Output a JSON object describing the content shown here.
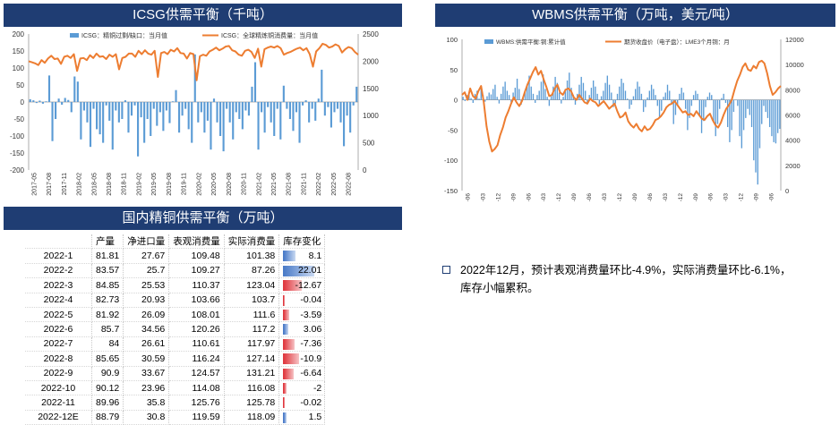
{
  "chart_data": [
    {
      "type": "bar+line",
      "title": "ICSG供需平衡（千吨）",
      "legend": [
        "ICSG：精铜过剩/缺口：当月值",
        "ICSG：全球精炼铜消费量：当月值"
      ],
      "left_axis": {
        "min": -200,
        "max": 200,
        "ticks": [
          200,
          150,
          100,
          50,
          0,
          -50,
          -100,
          -150,
          -200
        ]
      },
      "right_axis": {
        "min": 0,
        "max": 2500,
        "ticks": [
          2500,
          2000,
          1500,
          1000,
          500,
          0
        ]
      },
      "x_tick_labels": [
        "2017-05",
        "2017-08",
        "2017-11",
        "2018-02",
        "2018-05",
        "2018-08",
        "2018-11",
        "2019-02",
        "2019-05",
        "2019-08",
        "2019-11",
        "2020-02",
        "2020-05",
        "2020-08",
        "2020-11",
        "2021-02",
        "2021-05",
        "2021-08",
        "2021-11",
        "2022-02",
        "2022-05",
        "2022-08"
      ],
      "series": [
        {
          "name": "ICSG：精铜过剩/缺口：当月值",
          "kind": "bar",
          "values": [
            8,
            5,
            -3,
            4,
            -5,
            2,
            78,
            -115,
            -50,
            10,
            -8,
            12,
            6,
            -30,
            75,
            60,
            -110,
            -25,
            -60,
            -132,
            -20,
            -80,
            -95,
            -120,
            -10,
            -55,
            -140,
            -25,
            -60,
            -50,
            5,
            -90,
            -40,
            -10,
            -160,
            -45,
            -120,
            -50,
            -100,
            -20,
            -70,
            -30,
            -85,
            -25,
            -62,
            2,
            35,
            -90,
            -40,
            -20,
            -80,
            -120,
            140,
            -60,
            -30,
            -90,
            -55,
            -140,
            10,
            -60,
            -100,
            -145,
            -20,
            -60,
            -110,
            -30,
            -50,
            -80,
            -25,
            -40,
            45,
            117,
            -140,
            -30,
            -90,
            -15,
            -60,
            -100,
            -20,
            -110,
            48,
            -20,
            -50,
            -85,
            -30,
            -120,
            -10,
            5,
            -60,
            -20,
            -55,
            10,
            95,
            -40,
            -15,
            -75,
            -30,
            -20,
            -60,
            -130,
            -40,
            -90,
            -10,
            45
          ]
        },
        {
          "name": "ICSG：全球精炼铜消费量：当月值",
          "kind": "line",
          "values": [
            2000,
            1980,
            1960,
            1930,
            2020,
            1970,
            2050,
            2100,
            2040,
            2050,
            1950,
            2080,
            2100,
            2060,
            2130,
            1820,
            2050,
            2060,
            2020,
            2110,
            2060,
            2140,
            2080,
            2090,
            2040,
            2120,
            2080,
            2130,
            1850,
            2060,
            2080,
            2140,
            2140,
            2080,
            2190,
            2130,
            2200,
            2140,
            2120,
            2190,
            1710,
            2150,
            2170,
            2130,
            2210,
            2180,
            2240,
            2150,
            2140,
            2050,
            2150,
            2130,
            1650,
            2090,
            2120,
            2100,
            2180,
            2210,
            2250,
            2200,
            2230,
            2270,
            2280,
            2200,
            2180,
            2120,
            2100,
            2190,
            2210,
            2170,
            2060,
            2230,
            1900,
            2220,
            2250,
            2270,
            2250,
            2280,
            2240,
            2120,
            2150,
            2170,
            2200,
            2230,
            2250,
            2200,
            2240,
            2130,
            1900,
            2180,
            2240,
            2320,
            2300,
            2250,
            2270,
            2310,
            2280,
            2160,
            2220,
            2260,
            2240,
            2170,
            2120
          ]
        }
      ]
    },
    {
      "type": "bar+line",
      "title": "WBMS供需平衡（万吨，美元/吨）",
      "legend": [
        "WBMS:供需平衡:铜:累计值",
        "期货收盘价（电子盘）：LME3个月铜：月"
      ],
      "left_axis": {
        "min": -150,
        "max": 100,
        "ticks": [
          100,
          50,
          0,
          -50,
          -100,
          -150
        ]
      },
      "right_axis": {
        "min": 0,
        "max": 12000,
        "ticks": [
          12000,
          10000,
          8000,
          6000,
          4000,
          2000,
          0
        ]
      },
      "x_tick_labels": [
        "2007-06",
        "2008-03",
        "2008-12",
        "2009-09",
        "2010-06",
        "2011-03",
        "2011-12",
        "2012-09",
        "2013-06",
        "2014-03",
        "2014-12",
        "2015-09",
        "2016-06",
        "2017-03",
        "2017-12",
        "2018-09",
        "2019-06",
        "2020-03",
        "2020-12",
        "2021-09",
        "2022-06"
      ],
      "series": [
        {
          "name": "WBMS:供需平衡:铜:累计值",
          "kind": "bar",
          "values": [
            5,
            -2,
            8,
            12,
            3,
            -5,
            10,
            15,
            2,
            20,
            8,
            -3,
            6,
            12,
            9,
            18,
            25,
            5,
            -6,
            10,
            22,
            30,
            15,
            8,
            -4,
            12,
            20,
            35,
            18,
            -8,
            5,
            14,
            25,
            40,
            22,
            10,
            -5,
            8,
            15,
            30,
            42,
            18,
            5,
            -10,
            8,
            22,
            38,
            28,
            12,
            -6,
            5,
            18,
            32,
            45,
            20,
            8,
            -8,
            10,
            25,
            38,
            28,
            15,
            -5,
            8,
            20,
            32,
            22,
            10,
            -8,
            6,
            15,
            28,
            40,
            25,
            12,
            -12,
            -6,
            10,
            22,
            35,
            28,
            15,
            2,
            -15,
            -8,
            6,
            18,
            30,
            22,
            10,
            -20,
            -12,
            4,
            15,
            25,
            18,
            8,
            -10,
            -30,
            -18,
            5,
            12,
            25,
            15,
            -5,
            -40,
            -25,
            -8,
            10,
            20,
            12,
            -15,
            -50,
            -30,
            -10,
            8,
            15,
            10,
            -25,
            -55,
            -35,
            -12,
            5,
            12,
            8,
            -35,
            -60,
            -40,
            -15,
            3,
            10,
            -5,
            -45,
            -70,
            -50,
            -20,
            0,
            -10,
            -60,
            -80,
            -50,
            -30,
            -15,
            -25,
            -45,
            -100,
            -120,
            -140,
            -80,
            -40,
            -10,
            -20,
            -30,
            -45,
            -60,
            -70,
            -72,
            -55,
            -48
          ]
        },
        {
          "name": "期货收盘价（电子盘）：LME3个月铜：月",
          "kind": "line",
          "values": [
            7600,
            7800,
            7200,
            8100,
            7500,
            7300,
            7900,
            8300,
            7000,
            5100,
            3900,
            3100,
            3300,
            3600,
            4400,
            5000,
            5800,
            6300,
            6900,
            7400,
            7000,
            6700,
            7100,
            7800,
            8400,
            8900,
            9400,
            9800,
            9200,
            9500,
            8800,
            8200,
            7500,
            7600,
            8100,
            8400,
            7800,
            7600,
            8000,
            8100,
            7900,
            7400,
            7200,
            7600,
            7300,
            7000,
            6900,
            7300,
            7100,
            7000,
            6700,
            6900,
            7100,
            6800,
            6500,
            6700,
            6900,
            6300,
            5800,
            5900,
            6200,
            5500,
            5200,
            5000,
            5300,
            4900,
            4700,
            5100,
            4800,
            4900,
            5200,
            5600,
            5700,
            5900,
            6200,
            6600,
            6800,
            6900,
            7100,
            6800,
            6500,
            6200,
            6300,
            6000,
            6100,
            5900,
            6300,
            6000,
            5700,
            5600,
            5900,
            6100,
            5600,
            5200,
            5000,
            5400,
            6000,
            6500,
            6800,
            7200,
            8000,
            8700,
            9200,
            9800,
            10100,
            9600,
            9500,
            9900,
            9700,
            10200,
            10300,
            10100,
            9300,
            8300,
            7600,
            7800,
            8100,
            8300
          ]
        }
      ]
    }
  ],
  "panels": {
    "icsg_title": "ICSG供需平衡（千吨）",
    "icsg_legend_bar": "ICSG：精铜过剩/缺口：当月值",
    "icsg_legend_line": "ICSG：全球精炼铜消费量：当月值",
    "wbms_title": "WBMS供需平衡（万吨，美元/吨）",
    "wbms_legend_bar": "WBMS:供需平衡:铜:累计值",
    "wbms_legend_line": "期货收盘价（电子盘）：LME3个月铜：月",
    "domestic_title": "国内精铜供需平衡（万吨）"
  },
  "domestic_table": {
    "headers": [
      "产量",
      "净进口量",
      "表观消费量",
      "实际消费量",
      "库存变化"
    ],
    "rows": [
      {
        "month": "2022-1",
        "cells": [
          "81.81",
          "27.67",
          "109.48",
          "101.38",
          "8.1"
        ],
        "inv": 8.1
      },
      {
        "month": "2022-2",
        "cells": [
          "83.57",
          "25.7",
          "109.27",
          "87.26",
          "22.01"
        ],
        "inv": 22.01
      },
      {
        "month": "2022-3",
        "cells": [
          "84.85",
          "25.53",
          "110.37",
          "123.04",
          "-12.67"
        ],
        "inv": -12.67
      },
      {
        "month": "2022-4",
        "cells": [
          "82.73",
          "20.93",
          "103.66",
          "103.7",
          "-0.04"
        ],
        "inv": -0.04
      },
      {
        "month": "2022-5",
        "cells": [
          "81.92",
          "26.09",
          "108.01",
          "111.6",
          "-3.59"
        ],
        "inv": -3.59
      },
      {
        "month": "2022-6",
        "cells": [
          "85.7",
          "34.56",
          "120.26",
          "117.2",
          "3.06"
        ],
        "inv": 3.06
      },
      {
        "month": "2022-7",
        "cells": [
          "84",
          "26.61",
          "110.61",
          "117.97",
          "-7.36"
        ],
        "inv": -7.36
      },
      {
        "month": "2022-8",
        "cells": [
          "85.65",
          "30.59",
          "116.24",
          "127.14",
          "-10.9"
        ],
        "inv": -10.9
      },
      {
        "month": "2022-9",
        "cells": [
          "90.9",
          "33.67",
          "124.57",
          "131.21",
          "-6.64"
        ],
        "inv": -6.64
      },
      {
        "month": "2022-10",
        "cells": [
          "90.12",
          "23.96",
          "114.08",
          "116.08",
          "-2"
        ],
        "inv": -2
      },
      {
        "month": "2022-11",
        "cells": [
          "89.96",
          "35.8",
          "125.76",
          "125.78",
          "-0.02"
        ],
        "inv": -0.02
      },
      {
        "month": "2022-12E",
        "cells": [
          "88.79",
          "30.8",
          "119.59",
          "118.09",
          "1.5"
        ],
        "inv": 1.5
      }
    ]
  },
  "note": "2022年12月，预计表观消费量环比-4.9%，实际消费量环比-6.1%，库存小幅累积。",
  "colors": {
    "header_bg": "#1f3d73",
    "bar_blue": "#5b9bd5",
    "line_orange": "#ed7d31",
    "inv_neg": "#e0383f",
    "inv_pos": "#4a7bc8"
  }
}
